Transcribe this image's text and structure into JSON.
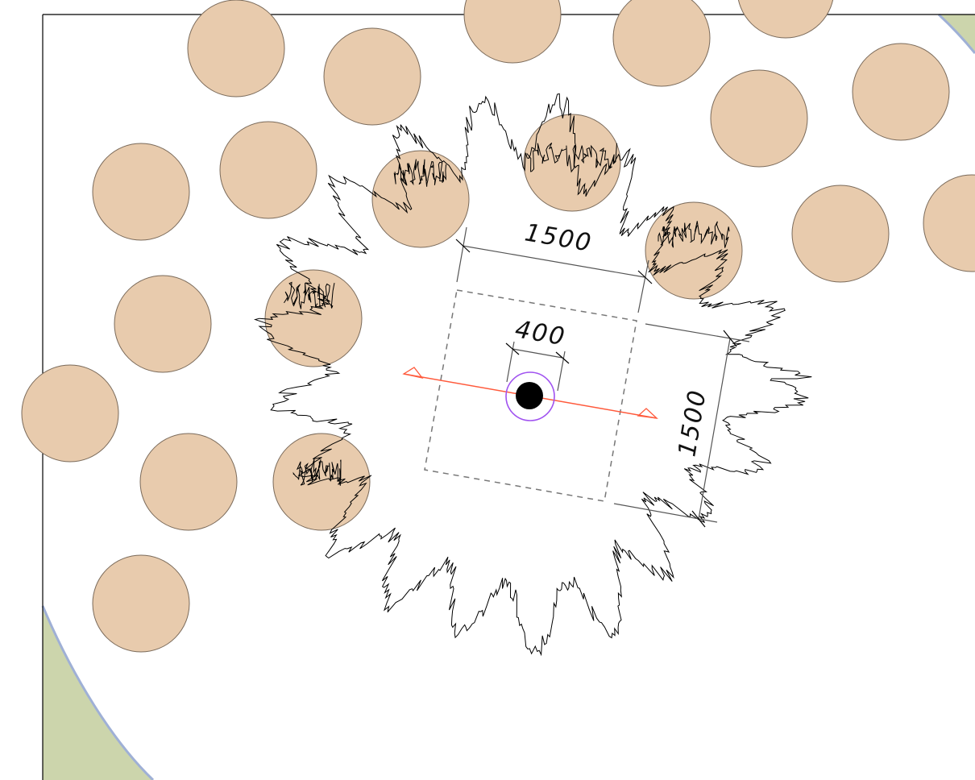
{
  "dimensions": {
    "outer_top": "1500",
    "outer_side": "1500",
    "inner": "400"
  },
  "colors": {
    "pile_fill": "#e8cbad",
    "pile_stroke": "#7a6a5a",
    "green_area": "#ccd5ac",
    "boundary_line": "#9fb0d6",
    "section_line": "#ff5a3c",
    "ring": "#a052f0"
  }
}
